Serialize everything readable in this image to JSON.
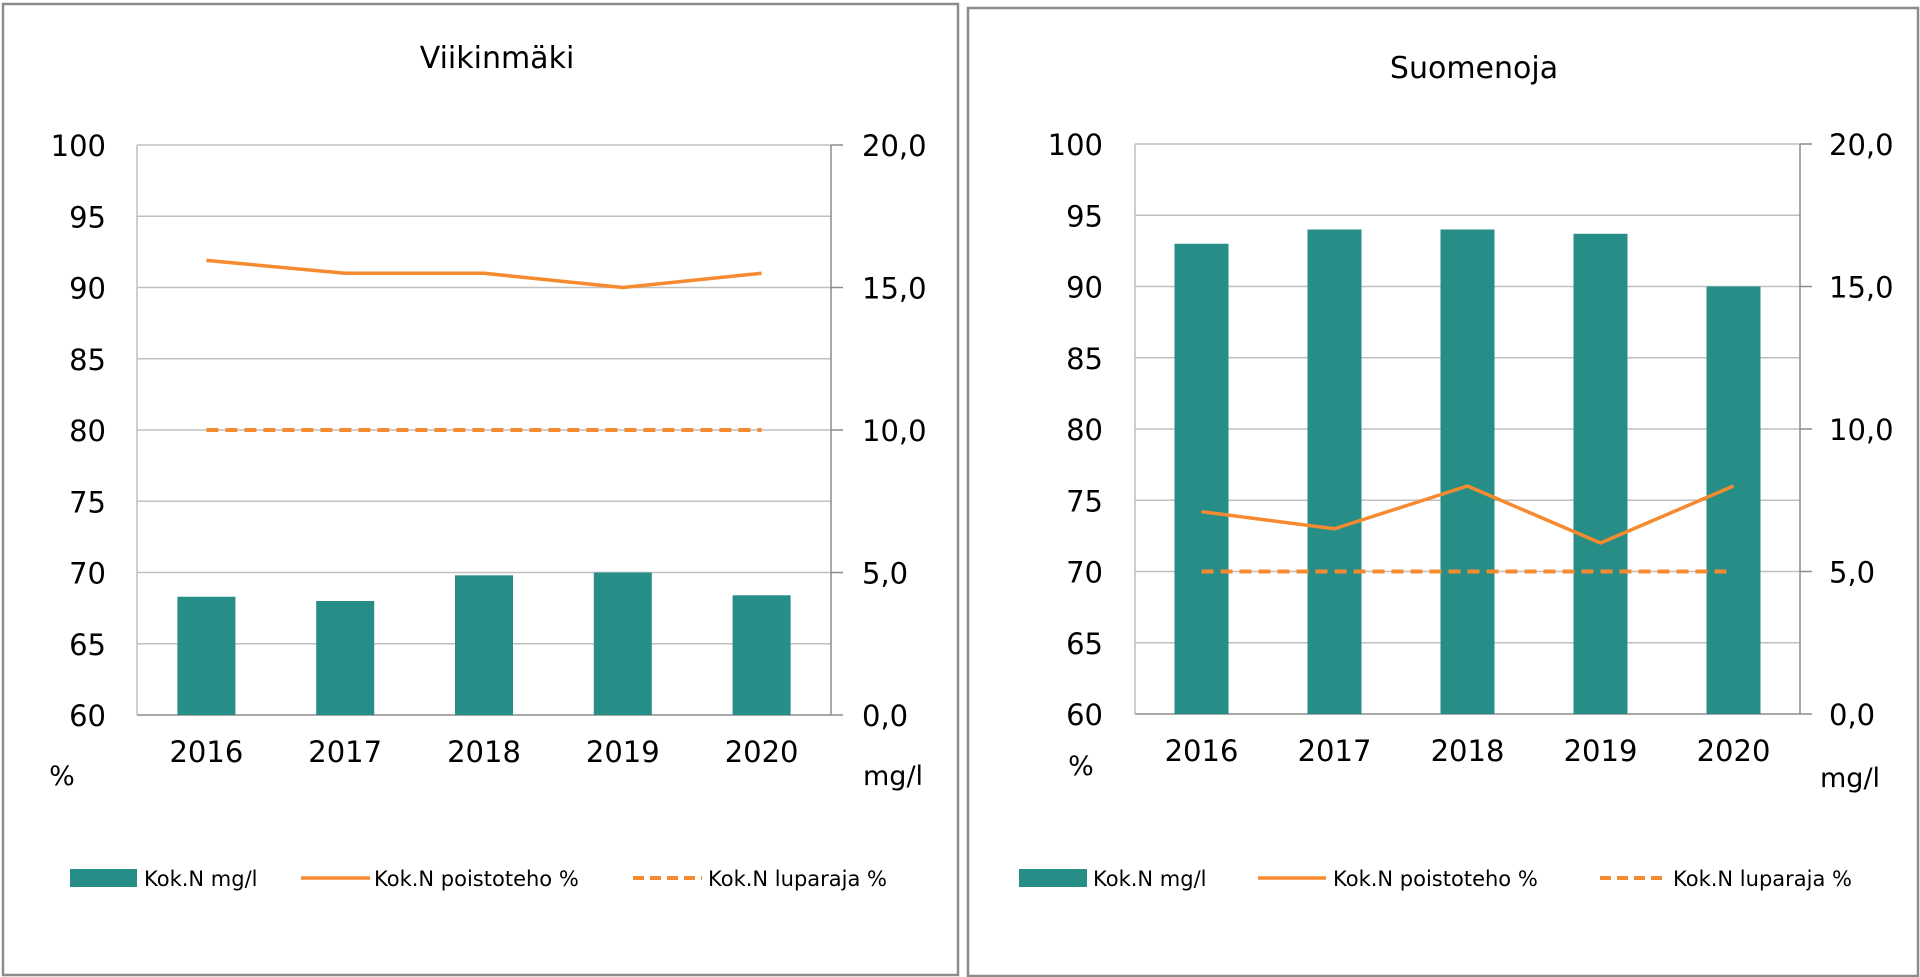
{
  "colors": {
    "bar": "#268D87",
    "line": "#F58A2E",
    "grid": "#BFBFBF",
    "frame": "#8C8C8C"
  },
  "chart_data": [
    {
      "type": "bar",
      "title": "Viikinmäki",
      "categories": [
        "2016",
        "2017",
        "2018",
        "2019",
        "2020"
      ],
      "y_left": {
        "label": "%",
        "ylim": [
          60,
          100
        ],
        "ticks": [
          "60",
          "65",
          "70",
          "75",
          "80",
          "85",
          "90",
          "95",
          "100"
        ]
      },
      "y_right": {
        "label": "mg/l",
        "ylim": [
          0,
          20
        ],
        "ticks": [
          "0,0",
          "5,0",
          "10,0",
          "15,0",
          "20,0"
        ]
      },
      "grid": true,
      "legend_position": "bottom",
      "series": [
        {
          "name": "Kok.N mg/l",
          "kind": "bar",
          "axis": "right",
          "values": [
            4.15,
            4.0,
            4.9,
            5.0,
            4.2
          ]
        },
        {
          "name": "Kok.N poistoteho %",
          "kind": "line",
          "axis": "left",
          "values": [
            91.9,
            91.0,
            91.0,
            90.0,
            91.0
          ]
        },
        {
          "name": "Kok.N luparaja %",
          "kind": "dashed",
          "axis": "left",
          "values": [
            80,
            80,
            80,
            80,
            80
          ]
        }
      ]
    },
    {
      "type": "bar",
      "title": "Suomenoja",
      "categories": [
        "2016",
        "2017",
        "2018",
        "2019",
        "2020"
      ],
      "y_left": {
        "label": "%",
        "ylim": [
          60,
          100
        ],
        "ticks": [
          "60",
          "65",
          "70",
          "75",
          "80",
          "85",
          "90",
          "95",
          "100"
        ]
      },
      "y_right": {
        "label": "mg/l",
        "ylim": [
          0,
          20
        ],
        "ticks": [
          "0,0",
          "5,0",
          "10,0",
          "15,0",
          "20,0"
        ]
      },
      "grid": true,
      "legend_position": "bottom",
      "series": [
        {
          "name": "Kok.N mg/l",
          "kind": "bar",
          "axis": "right",
          "values": [
            16.5,
            17.0,
            17.0,
            16.85,
            15.0
          ]
        },
        {
          "name": "Kok.N poistoteho %",
          "kind": "line",
          "axis": "left",
          "values": [
            74.2,
            73.0,
            76.0,
            72.0,
            76.0
          ]
        },
        {
          "name": "Kok.N luparaja %",
          "kind": "dashed",
          "axis": "left",
          "values": [
            70,
            70,
            70,
            70,
            70
          ]
        }
      ]
    }
  ]
}
